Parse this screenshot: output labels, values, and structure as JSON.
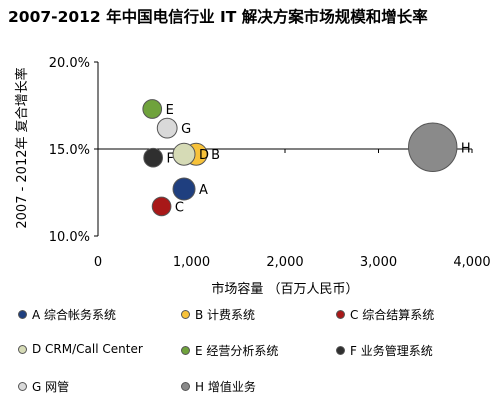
{
  "chart_data": {
    "type": "scatter",
    "title": "2007-2012 年中国电信行业 IT 解决方案市场规模和增长率",
    "xlabel": "市场容量 （百万人民币）",
    "ylabel": "2007 - 2012年 复合增长率",
    "xlim": [
      0,
      4000
    ],
    "ylim": [
      10.0,
      20.0
    ],
    "x_ticks": [
      0,
      1000,
      2000,
      3000,
      4000
    ],
    "x_tick_labels": [
      "0",
      "1,000",
      "2,000",
      "3,000",
      "4,000"
    ],
    "y_ticks": [
      10.0,
      15.0,
      20.0
    ],
    "y_tick_labels": [
      "10.0%",
      "15.0%",
      "20.0%"
    ],
    "grid": false,
    "reference_line_y": 15.0,
    "legend_position": "bottom",
    "series": [
      {
        "label": "A",
        "legend": "A 综合帐务系统",
        "x": 920,
        "y": 12.7,
        "size": 1.0,
        "color": "#1f3f7f"
      },
      {
        "label": "B",
        "legend": "B 计费系统",
        "x": 1050,
        "y": 14.7,
        "size": 1.0,
        "color": "#f7c23a"
      },
      {
        "label": "C",
        "legend": "C 综合结算系统",
        "x": 680,
        "y": 11.7,
        "size": 0.85,
        "color": "#a81818"
      },
      {
        "label": "D",
        "legend": "D CRM/Call Center",
        "x": 920,
        "y": 14.7,
        "size": 1.0,
        "color": "#d6dbb6"
      },
      {
        "label": "E",
        "legend": "E 经营分析系统",
        "x": 580,
        "y": 17.3,
        "size": 0.85,
        "color": "#6fa23c"
      },
      {
        "label": "F",
        "legend": "F 业务管理系统",
        "x": 590,
        "y": 14.5,
        "size": 0.85,
        "color": "#2f2f2f"
      },
      {
        "label": "G",
        "legend": "G 网管",
        "x": 740,
        "y": 16.2,
        "size": 0.9,
        "color": "#d9d9d9"
      },
      {
        "label": "H",
        "legend": "H 增值业务",
        "x": 3580,
        "y": 15.1,
        "size": 2.2,
        "color": "#8a8a8a"
      }
    ]
  }
}
